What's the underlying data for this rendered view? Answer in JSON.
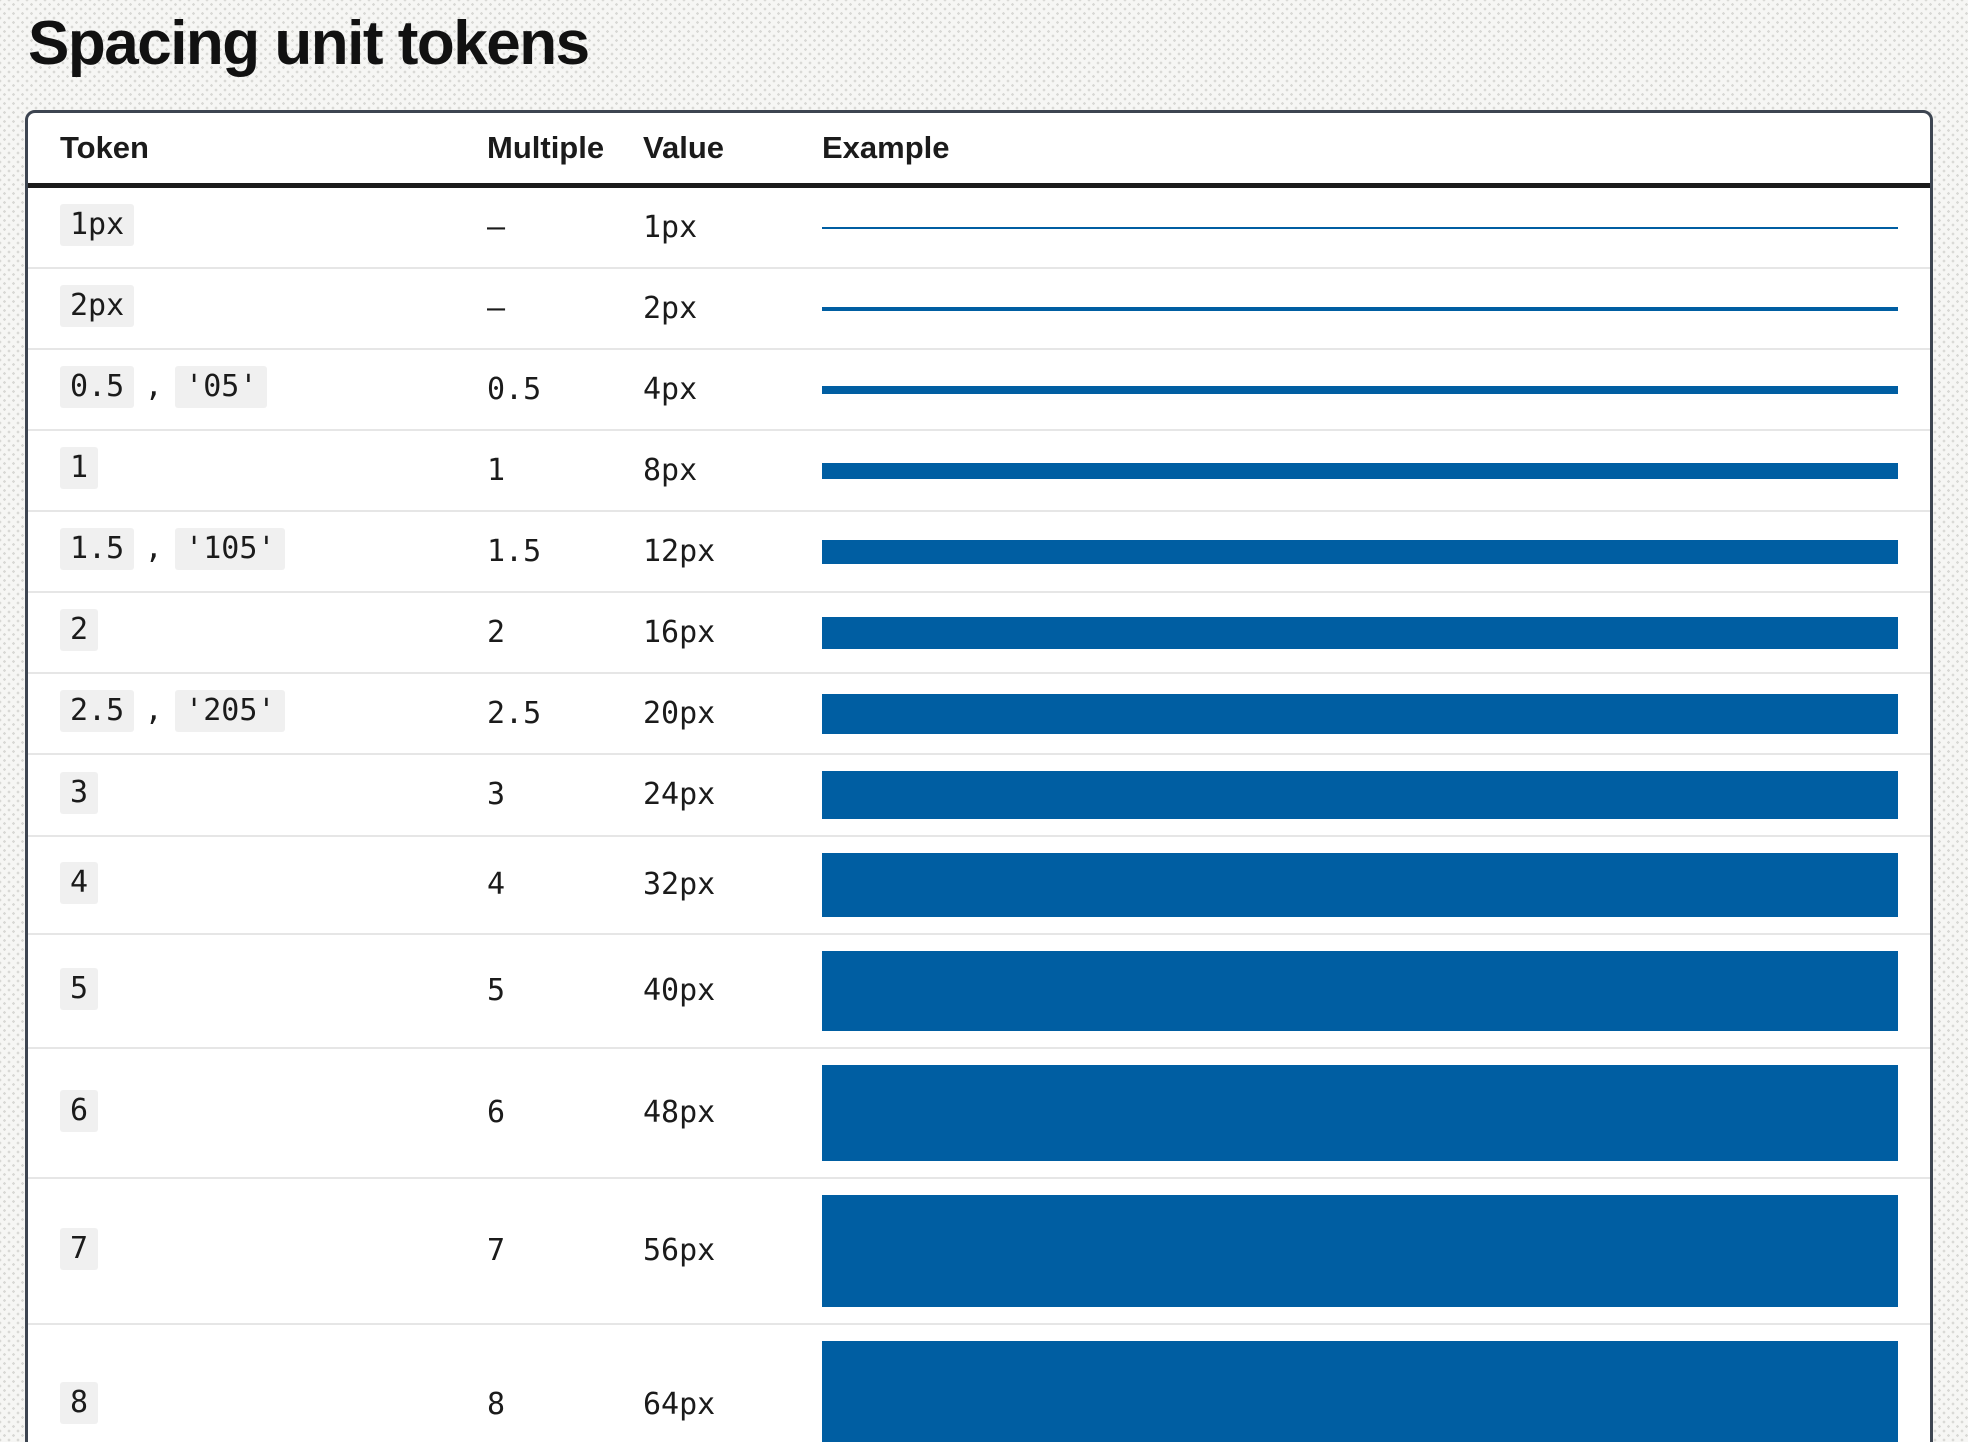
{
  "page": {
    "title": "Spacing unit tokens"
  },
  "table": {
    "headers": {
      "token": "Token",
      "multiple": "Multiple",
      "value": "Value",
      "example": "Example"
    },
    "token_separator": ",",
    "colors": {
      "example_bar": "#005ea2",
      "token_badge_bg": "#f0f0f0"
    },
    "rows": [
      {
        "tokens": [
          "1px"
        ],
        "multiple": "–",
        "value": "1px"
      },
      {
        "tokens": [
          "2px"
        ],
        "multiple": "–",
        "value": "2px"
      },
      {
        "tokens": [
          "0.5",
          "'05'"
        ],
        "multiple": "0.5",
        "value": "4px"
      },
      {
        "tokens": [
          "1"
        ],
        "multiple": "1",
        "value": "8px"
      },
      {
        "tokens": [
          "1.5",
          "'105'"
        ],
        "multiple": "1.5",
        "value": "12px"
      },
      {
        "tokens": [
          "2"
        ],
        "multiple": "2",
        "value": "16px"
      },
      {
        "tokens": [
          "2.5",
          "'205'"
        ],
        "multiple": "2.5",
        "value": "20px"
      },
      {
        "tokens": [
          "3"
        ],
        "multiple": "3",
        "value": "24px"
      },
      {
        "tokens": [
          "4"
        ],
        "multiple": "4",
        "value": "32px"
      },
      {
        "tokens": [
          "5"
        ],
        "multiple": "5",
        "value": "40px"
      },
      {
        "tokens": [
          "6"
        ],
        "multiple": "6",
        "value": "48px"
      },
      {
        "tokens": [
          "7"
        ],
        "multiple": "7",
        "value": "56px"
      },
      {
        "tokens": [
          "8"
        ],
        "multiple": "8",
        "value": "64px"
      }
    ]
  }
}
